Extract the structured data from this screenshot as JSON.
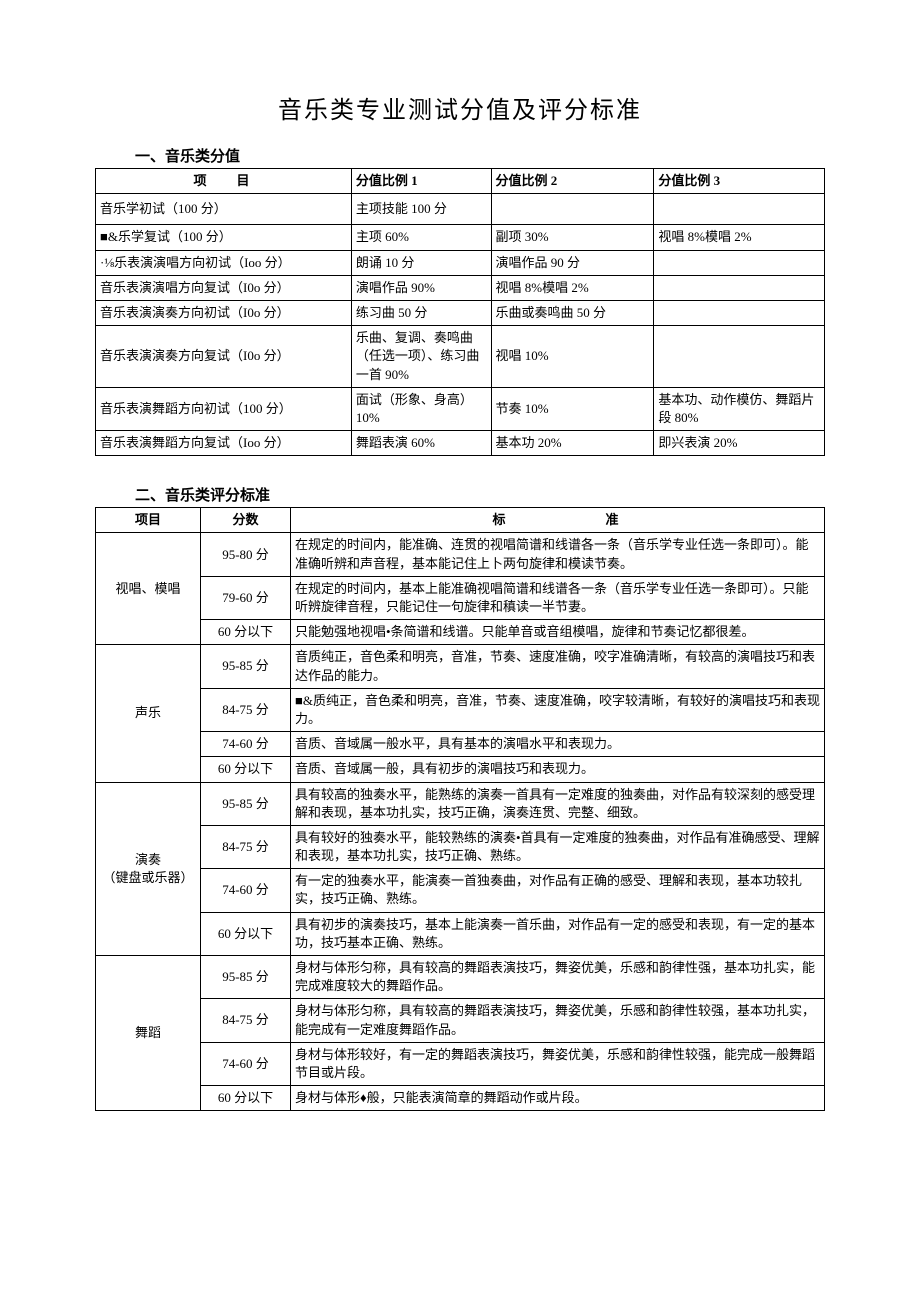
{
  "title": "音乐类专业测试分值及评分标准",
  "section1": {
    "header": "一、音乐类分值",
    "columns": [
      "项目",
      "分值比例 1",
      "分值比例 2",
      "分值比例 3"
    ],
    "rows": [
      {
        "c1": "音乐学初试（100 分）",
        "c2": "主项技能 100 分",
        "c3": "",
        "c4": "",
        "tall": true
      },
      {
        "c1": "■&乐学复试（100 分）",
        "c2": "主项 60%",
        "c3": "副项 30%",
        "c4": "视唱 8%模唱 2%"
      },
      {
        "c1": "·⅛乐表演演唱方向初试（Ioo 分）",
        "c2": "朗诵 10 分",
        "c3": "演唱作品 90 分",
        "c4": ""
      },
      {
        "c1": "音乐表演演唱方向复试（I0o 分）",
        "c2": "演唱作品 90%",
        "c3": "视唱 8%模唱 2%",
        "c4": ""
      },
      {
        "c1": "音乐表演演奏方向初试（I0o 分）",
        "c2": "练习曲 50 分",
        "c3": "乐曲或奏鸣曲 50 分",
        "c4": ""
      },
      {
        "c1": "音乐表演演奏方向复试（I0o 分）",
        "c2": "乐曲、复调、奏鸣曲（任选一项）、练习曲一首 90%",
        "c3": "视唱 10%",
        "c4": ""
      },
      {
        "c1": "音乐表演舞蹈方向初试（100 分）",
        "c2": "面试（形象、身高）10%",
        "c3": "节奏 10%",
        "c4": "基本功、动作模仿、舞蹈片段 80%"
      },
      {
        "c1": "音乐表演舞蹈方向复试（Ioo 分）",
        "c2": "舞蹈表演 60%",
        "c3": "基本功 20%",
        "c4": "即兴表演 20%"
      }
    ]
  },
  "section2": {
    "header": "二、音乐类评分标准",
    "columns": [
      "项目",
      "分数",
      "标准"
    ],
    "groups": [
      {
        "project": "视唱、模唱",
        "rows": [
          {
            "score": "95-80 分",
            "criteria": "在规定的时间内，能准确、连贯的视唱简谱和线谱各一条（音乐学专业任选一条即可）。能准确听辨和声音程，基本能记住上卜两句旋律和模读节奏。"
          },
          {
            "score": "79-60 分",
            "criteria": "在规定的时间内，基本上能准确视唱简谱和线谱各一条（音乐学专业任选一条即可）。只能听辨旋律音程，只能记住一句旋律和稹读一半节妻。"
          },
          {
            "score": "60 分以下",
            "criteria": "只能勉强地视唱•条简谱和线谱。只能单音或音组模唱，旋律和节奏记忆都很差。"
          }
        ]
      },
      {
        "project": "声乐",
        "rows": [
          {
            "score": "95-85 分",
            "criteria": "音质纯正，音色柔和明亮，音准，节奏、速度准确，咬字准确清晰，有较高的演唱技巧和表达作品的能力。"
          },
          {
            "score": "84-75 分",
            "criteria": "■&质纯正，音色柔和明亮，音准，节奏、速度准确，咬字较清晰，有较好的演唱技巧和表现力。"
          },
          {
            "score": "74-60 分",
            "criteria": "音质、音域属一般水平，具有基本的演唱水平和表现力。"
          },
          {
            "score": "60 分以下",
            "criteria": "音质、音域属一般，具有初步的演唱技巧和表现力。"
          }
        ]
      },
      {
        "project": "演奏\n（键盘或乐器）",
        "rows": [
          {
            "score": "95-85 分",
            "criteria": "具有较高的独奏水平，能熟练的演奏一首具有一定难度的独奏曲，对作品有较深刻的感受理解和表现，基本功扎实，技巧正确，演奏连贯、完整、细致。"
          },
          {
            "score": "84-75 分",
            "criteria": "具有较好的独奏水平，能较熟练的演奏•首具有一定难度的独奏曲，对作品有准确感受、理解和表现，基本功扎实，技巧正确、熟练。"
          },
          {
            "score": "74-60 分",
            "criteria": "有一定的独奏水平，能演奏一首独奏曲，对作品有正确的感受、理解和表现，基本功较扎实，技巧正确、熟练。"
          },
          {
            "score": "60 分以下",
            "criteria": "具有初步的演奏技巧，基本上能演奏一首乐曲，对作品有一定的感受和表现，有一定的基本功，技巧基本正确、熟练。"
          }
        ]
      },
      {
        "project": "舞蹈",
        "rows": [
          {
            "score": "95-85 分",
            "criteria": "身材与体形匀称，具有较高的舞蹈表演技巧，舞姿优美，乐感和韵律性强，基本功扎实，能完成难度较大的舞蹈作品。"
          },
          {
            "score": "84-75 分",
            "criteria": "身材与体形匀称，具有较高的舞蹈表演技巧，舞姿优美，乐感和韵律性较强，基本功扎实，能完成有一定难度舞蹈作品。"
          },
          {
            "score": "74-60 分",
            "criteria": "身材与体形较好，有一定的舞蹈表演技巧，舞姿优美，乐感和韵律性较强，能完成一般舞蹈节目或片段。"
          },
          {
            "score": "60 分以下",
            "criteria": "身材与体形♦般，只能表演简章的舞蹈动作或片段。"
          }
        ]
      }
    ]
  }
}
